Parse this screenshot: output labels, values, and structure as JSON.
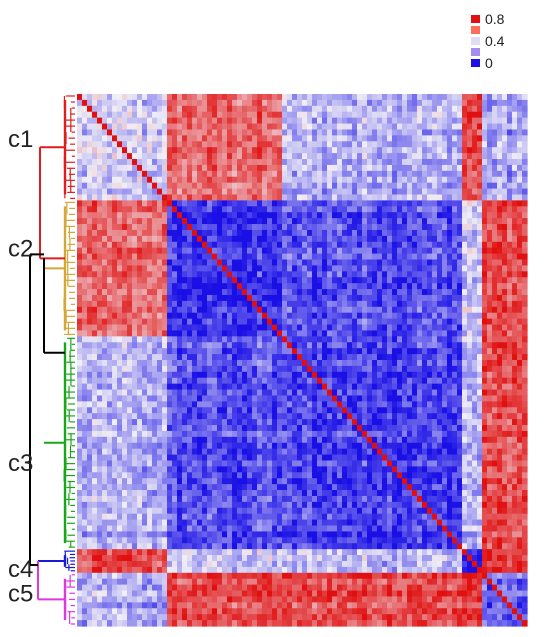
{
  "chart_data": {
    "type": "heatmap",
    "title": "",
    "xlabel": "",
    "ylabel": "",
    "value_range": [
      0,
      1
    ],
    "legend": {
      "placement": "top-right",
      "entries": [
        {
          "label": "0.8",
          "value": 0.8,
          "color": "#e01010"
        },
        {
          "label": "",
          "value": 0.6,
          "color": "#ff6e5c"
        },
        {
          "label": "0.4",
          "value": 0.4,
          "color": "#dfdcf4"
        },
        {
          "label": "",
          "value": 0.2,
          "color": "#a58cf0"
        },
        {
          "label": "0",
          "value": 0.0,
          "color": "#1a10e6"
        }
      ]
    },
    "clusters": [
      {
        "label": "c1",
        "color": "#e01c1c",
        "share": 0.205
      },
      {
        "label": "c2",
        "color": "#d4a838",
        "share": 0.25
      },
      {
        "label": "c3",
        "color": "#17a817",
        "share": 0.4
      },
      {
        "label": "c4",
        "color": "#1a1ad6",
        "share": 0.04
      },
      {
        "label": "c5",
        "color": "#e036e0",
        "share": 0.105
      }
    ],
    "block_similarity": [
      [
        0.35,
        0.68,
        0.3,
        0.75,
        0.28
      ],
      [
        0.68,
        0.05,
        0.12,
        0.35,
        0.75
      ],
      [
        0.3,
        0.12,
        0.1,
        0.32,
        0.75
      ],
      [
        0.75,
        0.35,
        0.32,
        0.05,
        0.8
      ],
      [
        0.28,
        0.75,
        0.75,
        0.8,
        0.15
      ]
    ],
    "dendrogram_joins": [
      [
        "c1",
        "c2"
      ],
      [
        "c4",
        "c5"
      ],
      [
        "c1-c2",
        "c3"
      ],
      [
        "c1-c2-c3",
        "c4-c5"
      ]
    ],
    "colors": {
      "low": "#1a10e6",
      "mid": "#f0eef6",
      "high": "#e01010",
      "dendrogram_root": "#000000"
    }
  }
}
